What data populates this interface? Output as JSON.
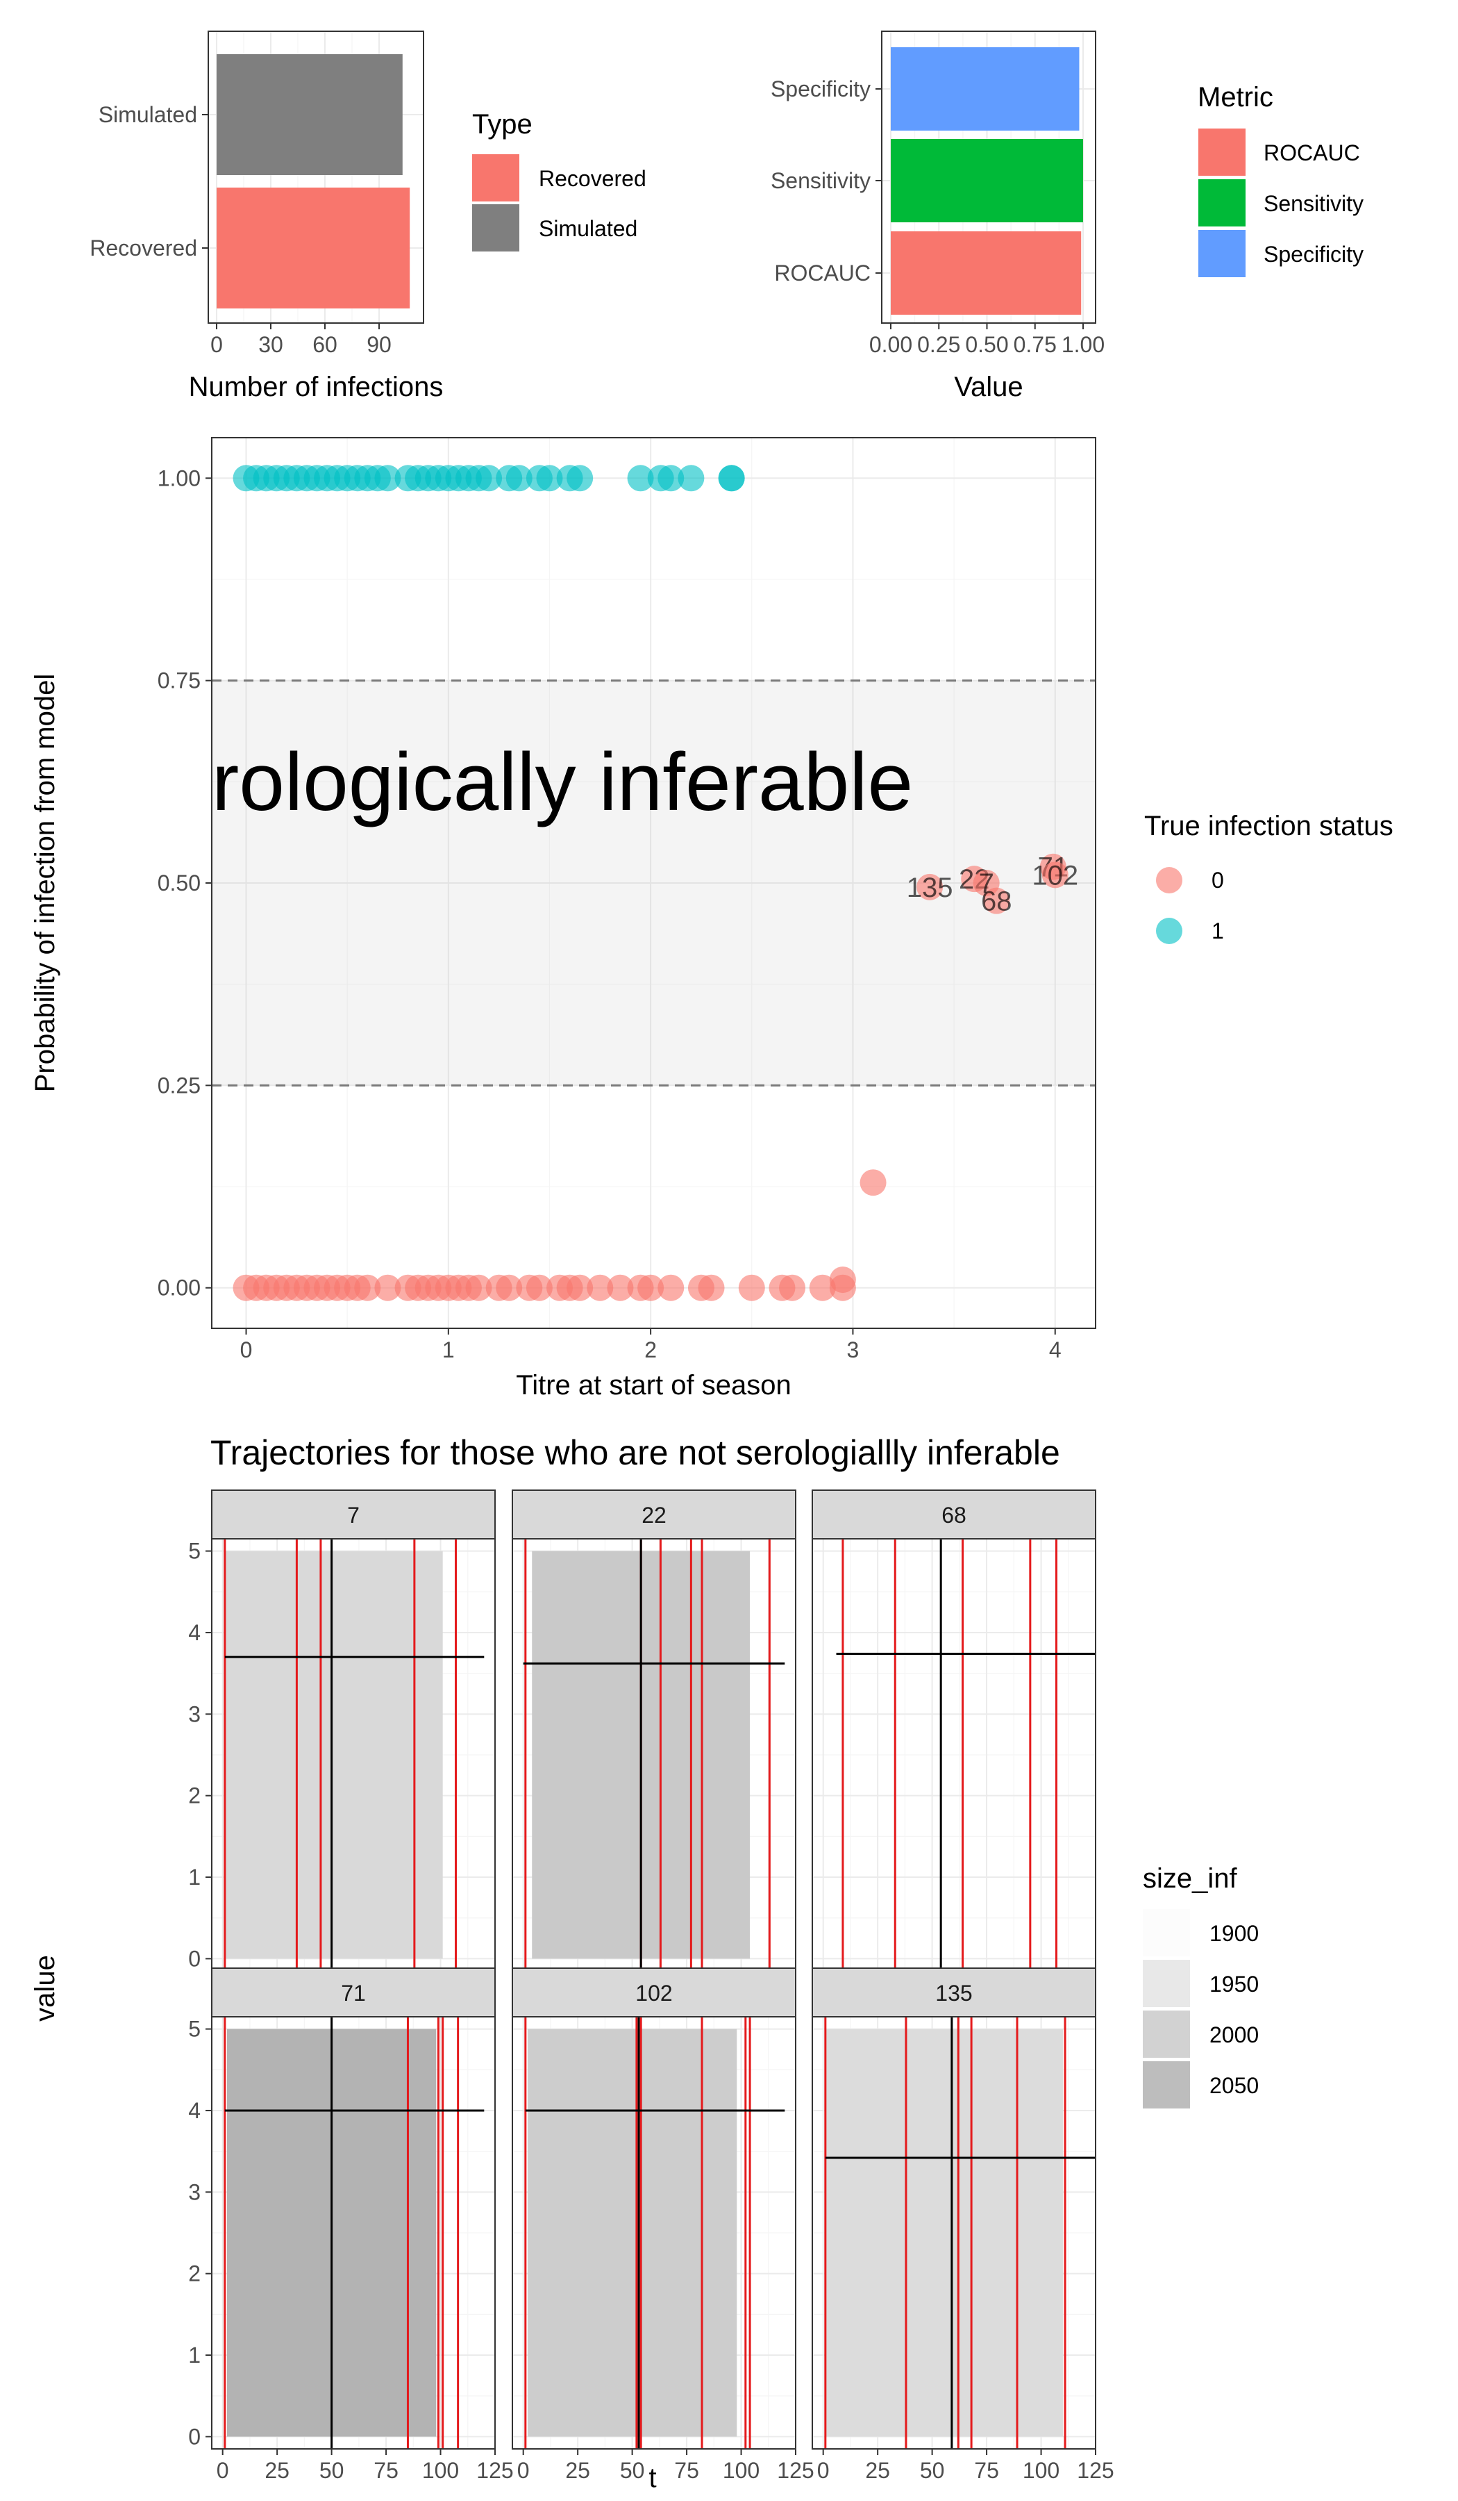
{
  "chart_data": [
    {
      "type": "bar",
      "orientation": "horizontal",
      "categories": [
        "Simulated",
        "Recovered"
      ],
      "values": [
        103,
        107
      ],
      "colors": [
        "#7f7f7f",
        "#F8766D"
      ],
      "xlabel": "Number of infections",
      "xlim": [
        0,
        110
      ],
      "x_ticks": [
        "0",
        "30",
        "60",
        "90"
      ],
      "legend": {
        "title": "Type",
        "entries": [
          "Recovered",
          "Simulated"
        ],
        "colors": [
          "#F8766D",
          "#7f7f7f"
        ],
        "placement": "right"
      },
      "grid": true
    },
    {
      "type": "bar",
      "orientation": "horizontal",
      "categories": [
        "Specificity",
        "Sensitivity",
        "ROCAUC"
      ],
      "values": [
        0.98,
        1.0,
        0.99
      ],
      "colors": [
        "#619CFF",
        "#00BA38",
        "#F8766D"
      ],
      "xlabel": "Value",
      "xlim": [
        0,
        1.05
      ],
      "x_ticks": [
        "0.00",
        "0.25",
        "0.50",
        "0.75",
        "1.00"
      ],
      "legend": {
        "title": "Metric",
        "entries": [
          "ROCAUC",
          "Sensitivity",
          "Specificity"
        ],
        "colors": [
          "#F8766D",
          "#00BA38",
          "#619CFF"
        ],
        "placement": "right"
      },
      "grid": true
    },
    {
      "type": "scatter",
      "xlabel": "Titre at start of season",
      "ylabel": "Probability of infection from model",
      "xlim": [
        -0.17,
        4.2
      ],
      "ylim": [
        -0.05,
        1.05
      ],
      "x_ticks": [
        "0",
        "1",
        "2",
        "3",
        "4"
      ],
      "y_ticks": [
        "0.00",
        "0.25",
        "0.50",
        "0.75",
        "1.00"
      ],
      "hlines": [
        0.75,
        0.25
      ],
      "shaded_band": [
        0.25,
        0.75
      ],
      "annotation": "rologically inferable",
      "legend": {
        "title": "True infection status",
        "entries": [
          "0",
          "1"
        ],
        "colors": [
          "#F8766D",
          "#00BFC4"
        ],
        "placement": "right"
      },
      "series": [
        {
          "name": "1",
          "color": "#00BFC4",
          "x": [
            0.0,
            0.05,
            0.1,
            0.15,
            0.2,
            0.25,
            0.3,
            0.35,
            0.4,
            0.45,
            0.5,
            0.55,
            0.6,
            0.65,
            0.7,
            0.8,
            0.85,
            0.9,
            0.95,
            1.0,
            1.05,
            1.1,
            1.15,
            1.2,
            1.3,
            1.35,
            1.45,
            1.5,
            1.6,
            1.65,
            1.95,
            2.05,
            2.1,
            2.2,
            2.4,
            2.4
          ],
          "y": [
            1,
            1,
            1,
            1,
            1,
            1,
            1,
            1,
            1,
            1,
            1,
            1,
            1,
            1,
            1,
            1,
            1,
            1,
            1,
            1,
            1,
            1,
            1,
            1,
            1,
            1,
            1,
            1,
            1,
            1,
            1,
            1,
            1,
            1,
            1,
            1
          ]
        },
        {
          "name": "0",
          "color": "#F8766D",
          "x": [
            0.0,
            0.05,
            0.1,
            0.15,
            0.2,
            0.25,
            0.3,
            0.35,
            0.4,
            0.45,
            0.5,
            0.55,
            0.6,
            0.7,
            0.8,
            0.85,
            0.9,
            0.95,
            1.0,
            1.05,
            1.1,
            1.15,
            1.25,
            1.3,
            1.4,
            1.45,
            1.55,
            1.6,
            1.65,
            1.75,
            1.85,
            1.95,
            2.0,
            2.1,
            2.25,
            2.3,
            2.5,
            2.65,
            2.7,
            2.85,
            2.95,
            2.95,
            3.1
          ],
          "y": [
            0,
            0,
            0,
            0,
            0,
            0,
            0,
            0,
            0,
            0,
            0,
            0,
            0,
            0,
            0,
            0,
            0,
            0,
            0,
            0,
            0,
            0,
            0,
            0,
            0,
            0,
            0,
            0,
            0,
            0,
            0,
            0,
            0,
            0,
            0,
            0,
            0,
            0,
            0,
            0,
            0.01,
            0,
            0.13
          ]
        }
      ],
      "labeled_points": [
        {
          "label": "135",
          "x": 3.38,
          "y": 0.495,
          "color": "#F8766D"
        },
        {
          "label": "22",
          "x": 3.6,
          "y": 0.505,
          "color": "#F8766D"
        },
        {
          "label": "7",
          "x": 3.66,
          "y": 0.5,
          "color": "#F8766D"
        },
        {
          "label": "68",
          "x": 3.71,
          "y": 0.478,
          "color": "#F8766D"
        },
        {
          "label": "71",
          "x": 3.99,
          "y": 0.52,
          "color": "#F8766D"
        },
        {
          "label": "102",
          "x": 4.0,
          "y": 0.51,
          "color": "#F8766D"
        }
      ]
    },
    {
      "type": "line",
      "title": "Trajectories for those who are not serologiallly inferable",
      "xlabel": "t",
      "ylabel": "value",
      "xlim": [
        -5,
        125
      ],
      "ylim": [
        -0.15,
        5.15
      ],
      "x_ticks": [
        "0",
        "25",
        "50",
        "75",
        "100",
        "125"
      ],
      "y_ticks": [
        "0",
        "1",
        "2",
        "3",
        "4",
        "5"
      ],
      "legend": {
        "title": "size_inf",
        "entries": [
          "1900",
          "1950",
          "2000",
          "2050"
        ],
        "colors": [
          "#fcfcfc",
          "#e8e8e8",
          "#d2d2d2",
          "#bdbdbd"
        ],
        "placement": "right"
      },
      "panels": [
        {
          "id": "7",
          "band": {
            "x": [
              1,
              101
            ],
            "y": [
              0,
              5
            ]
          },
          "band_color": "#d9d9d9",
          "red_lines": [
            1,
            34,
            45,
            88,
            107
          ],
          "vline": 50,
          "hline": {
            "x": [
              1,
              120
            ],
            "y": 3.7
          }
        },
        {
          "id": "22",
          "band": {
            "x": [
              4,
              104
            ],
            "y": [
              0,
              5
            ]
          },
          "band_color": "#c9c9c9",
          "red_lines": [
            1,
            54,
            63,
            77,
            82,
            113
          ],
          "vline": 54,
          "hline": {
            "x": [
              0,
              120
            ],
            "y": 3.62
          }
        },
        {
          "id": "68",
          "band": null,
          "band_color": null,
          "red_lines": [
            9,
            33,
            64,
            95,
            107
          ],
          "vline": 54,
          "hline": {
            "x": [
              6,
              125
            ],
            "y": 3.74
          }
        },
        {
          "id": "71",
          "band": {
            "x": [
              2,
              98
            ],
            "y": [
              0,
              5
            ]
          },
          "band_color": "#b3b3b3",
          "red_lines": [
            1,
            85,
            99,
            101,
            108
          ],
          "vline": 50,
          "hline": {
            "x": [
              1,
              120
            ],
            "y": 4.0
          }
        },
        {
          "id": "102",
          "band": {
            "x": [
              2,
              98
            ],
            "y": [
              0,
              5
            ]
          },
          "band_color": "#cdcdcd",
          "red_lines": [
            1,
            52,
            54,
            82,
            102,
            104
          ],
          "vline": 53,
          "hline": {
            "x": [
              1,
              120
            ],
            "y": 4.0
          }
        },
        {
          "id": "135",
          "band": {
            "x": [
              1,
              110
            ],
            "y": [
              0,
              5
            ]
          },
          "band_color": "#dcdcdc",
          "red_lines": [
            1,
            38,
            62,
            68,
            89,
            111
          ],
          "vline": 59,
          "hline": {
            "x": [
              1,
              125
            ],
            "y": 3.42
          }
        }
      ]
    }
  ]
}
